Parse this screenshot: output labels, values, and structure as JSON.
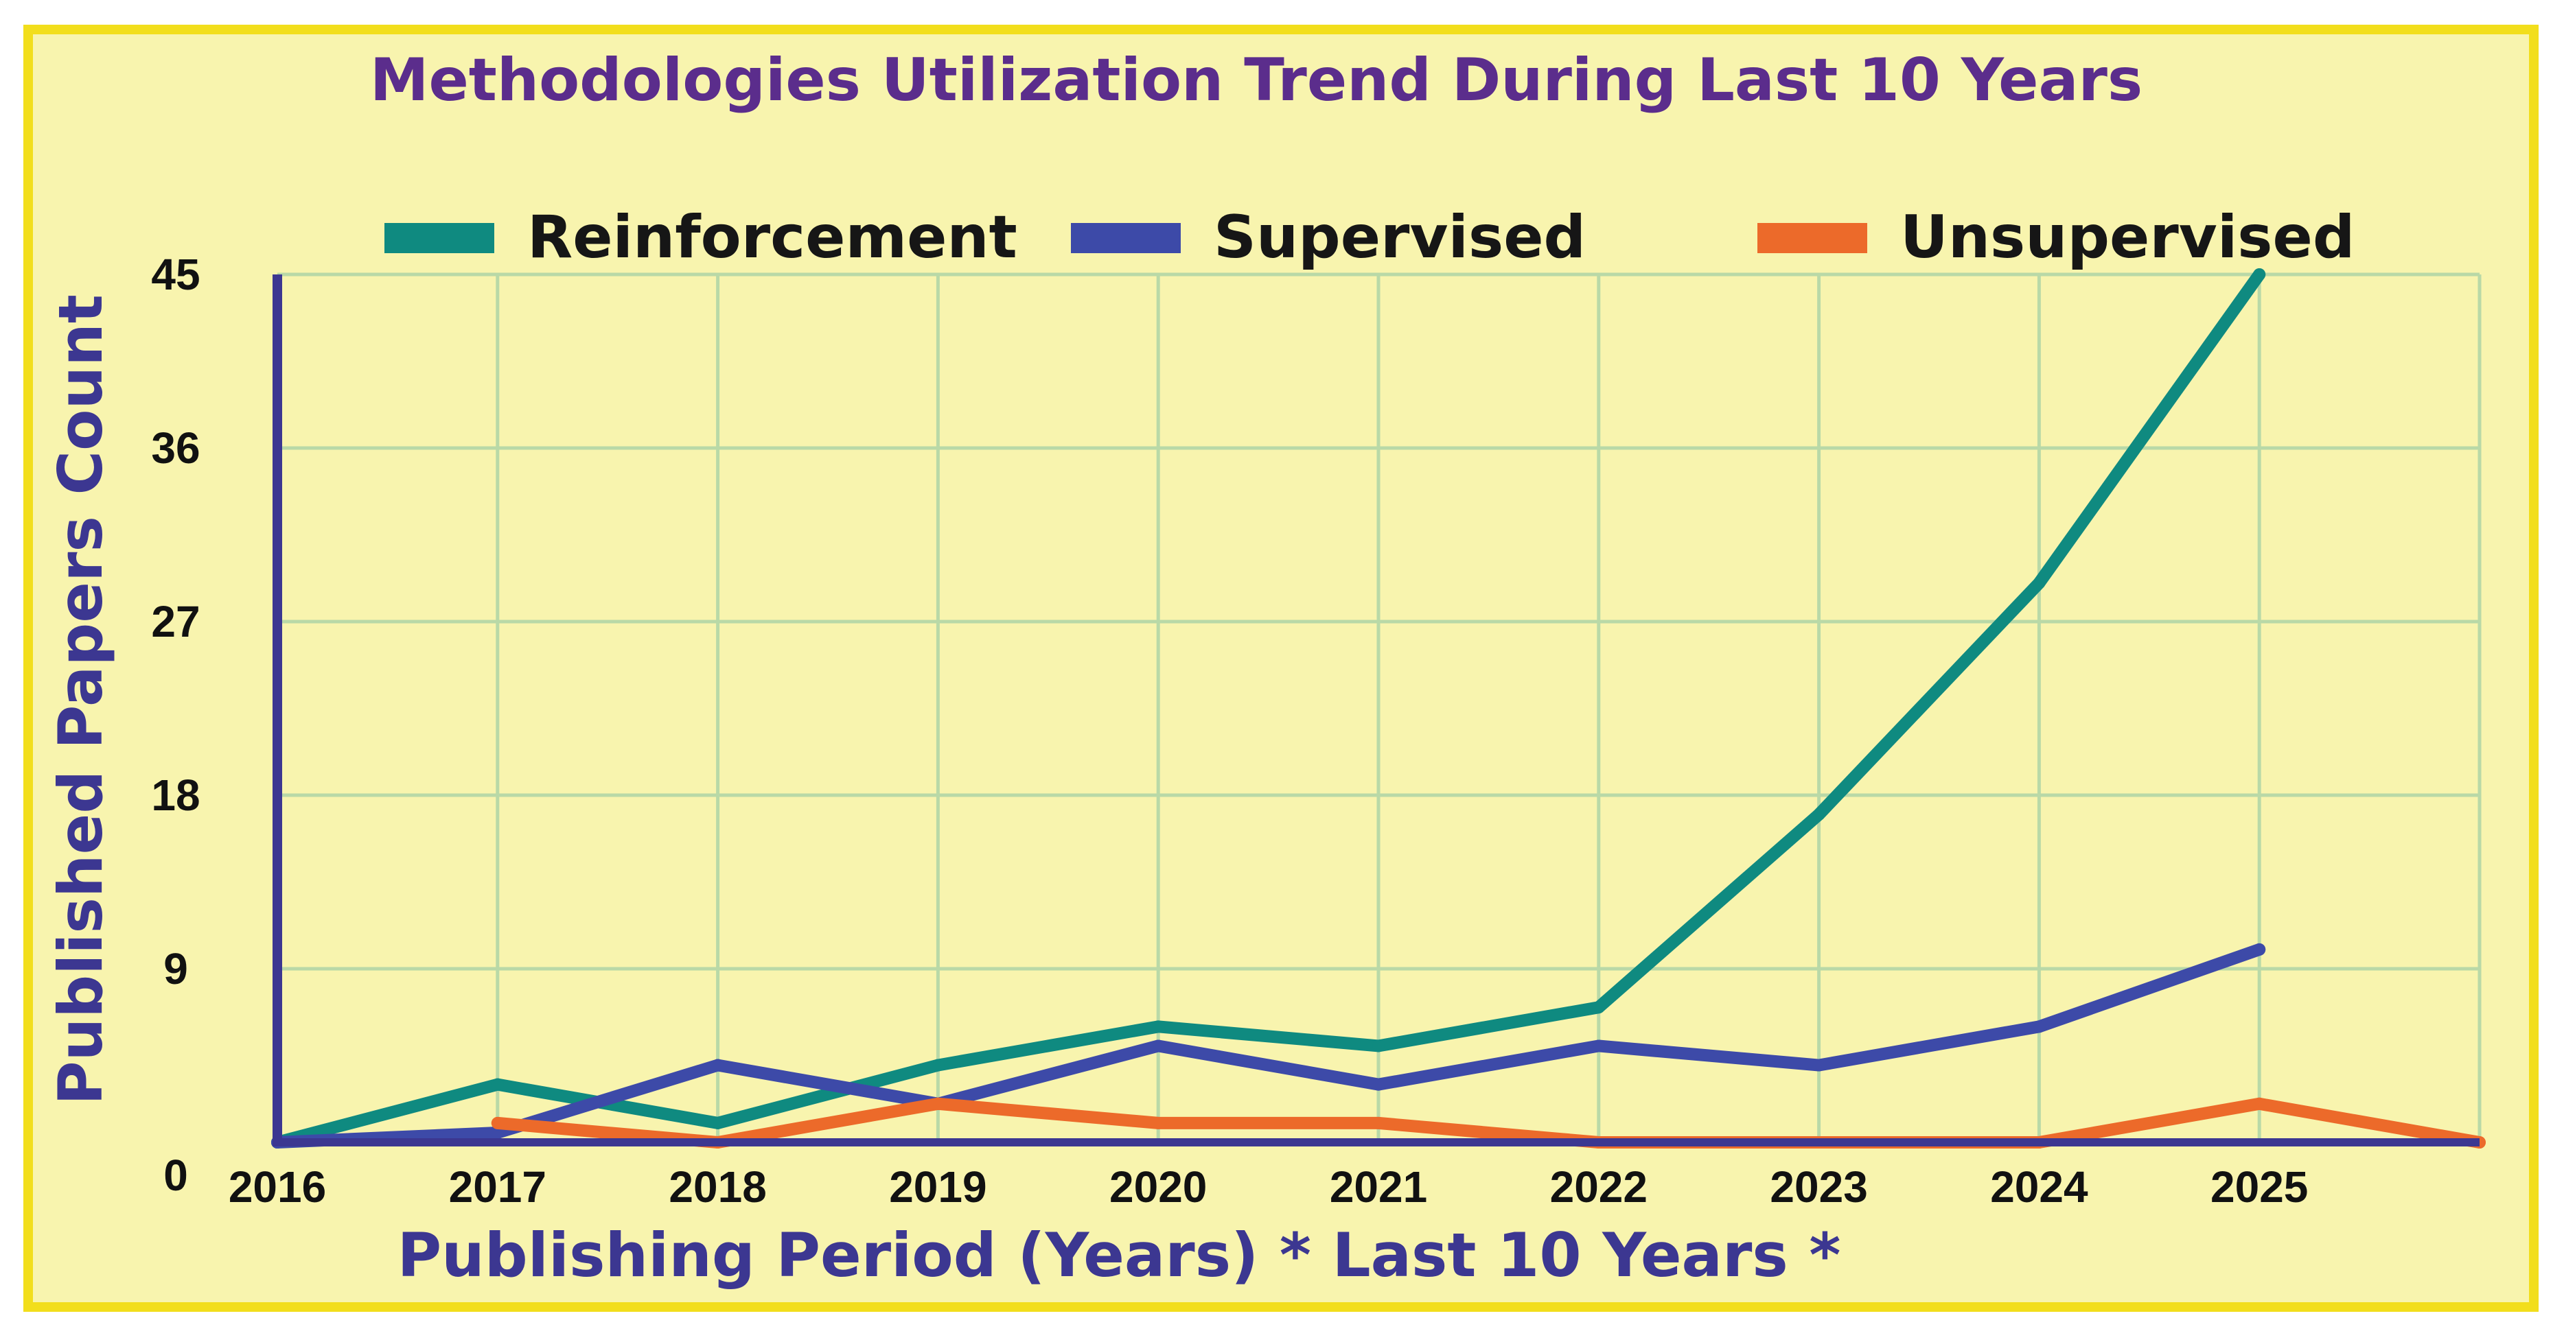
{
  "chart_data": {
    "type": "line",
    "title": "Methodologies Utilization Trend During Last 10 Years",
    "xlabel": "Publishing Period (Years) * Last 10 Years *",
    "ylabel": "Published Papers Count",
    "x_tick_labels": [
      "2016",
      "2017",
      "2018",
      "2019",
      "2020",
      "2021",
      "2022",
      "2023",
      "2024",
      "2025"
    ],
    "y_ticks": [
      0,
      9,
      18,
      27,
      36,
      45
    ],
    "ylim": [
      0,
      45
    ],
    "xlim": [
      2016,
      2026
    ],
    "grid": true,
    "legend_position": "top",
    "series": [
      {
        "name": "Reinforcement",
        "color": "#0f8a80",
        "points": [
          {
            "x": 2016,
            "y": 0
          },
          {
            "x": 2017,
            "y": 3
          },
          {
            "x": 2018,
            "y": 1
          },
          {
            "x": 2019,
            "y": 4
          },
          {
            "x": 2020,
            "y": 6
          },
          {
            "x": 2021,
            "y": 5
          },
          {
            "x": 2022,
            "y": 7
          },
          {
            "x": 2023,
            "y": 17
          },
          {
            "x": 2024,
            "y": 29
          },
          {
            "x": 2025,
            "y": 45
          }
        ]
      },
      {
        "name": "Supervised",
        "color": "#3d4aa8",
        "points": [
          {
            "x": 2016,
            "y": 0
          },
          {
            "x": 2017,
            "y": 0.5
          },
          {
            "x": 2018,
            "y": 4
          },
          {
            "x": 2019,
            "y": 2
          },
          {
            "x": 2020,
            "y": 5
          },
          {
            "x": 2021,
            "y": 3
          },
          {
            "x": 2022,
            "y": 5
          },
          {
            "x": 2023,
            "y": 4
          },
          {
            "x": 2024,
            "y": 6
          },
          {
            "x": 2025,
            "y": 10
          }
        ]
      },
      {
        "name": "Unsupervised",
        "color": "#ec6a2a",
        "points": [
          {
            "x": 2017,
            "y": 1
          },
          {
            "x": 2018,
            "y": 0
          },
          {
            "x": 2019,
            "y": 2
          },
          {
            "x": 2020,
            "y": 1
          },
          {
            "x": 2021,
            "y": 1
          },
          {
            "x": 2022,
            "y": 0
          },
          {
            "x": 2023,
            "y": 0
          },
          {
            "x": 2024,
            "y": 0
          },
          {
            "x": 2025,
            "y": 2
          },
          {
            "x": 2026,
            "y": 0
          }
        ]
      }
    ],
    "colors": {
      "background": "#f8f4ae",
      "border": "#f2de1c",
      "grid": "#b9d9a7",
      "axis": "#3c3791"
    }
  }
}
